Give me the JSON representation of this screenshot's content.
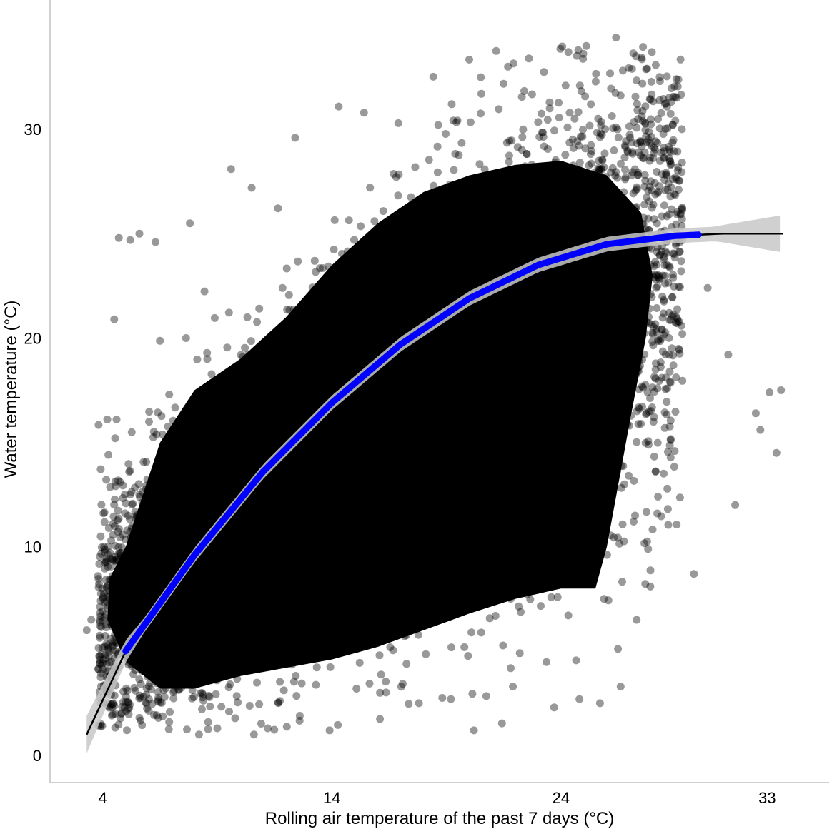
{
  "chart_data": {
    "type": "scatter",
    "title": "",
    "xlabel": "Rolling air temperature of the past 7 days (°C)",
    "ylabel": "Water temperature (°C)",
    "xlim": [
      1.7,
      35.7
    ],
    "ylim": [
      -1.3,
      36.2
    ],
    "x_ticks": [
      4,
      14,
      24,
      33
    ],
    "y_ticks": [
      0,
      10,
      20,
      30
    ],
    "grid": false,
    "legend": "none",
    "colors": {
      "points": "#000000",
      "fit_line_main": "#0000ff",
      "fit_line_ends": "#000000",
      "confidence_band": "#c8c8c8",
      "axis_line": "#d0d0d0"
    },
    "fit_curve": {
      "x": [
        3.3,
        5,
        8,
        11,
        14,
        17,
        20,
        23,
        26,
        29,
        31,
        33.7
      ],
      "y": [
        1,
        5.0,
        9.6,
        13.6,
        16.9,
        19.7,
        21.9,
        23.5,
        24.5,
        24.9,
        25.0,
        25.0
      ],
      "highlight_range": [
        5,
        30
      ]
    },
    "points_sample": {
      "x": [
        3.3,
        3.5,
        3.8,
        4.2,
        4.5,
        4.6,
        4.7,
        5.2,
        5.6,
        6.3,
        7.8,
        9.6,
        10.5,
        12.4,
        14.3,
        15.4,
        16.9,
        20.5,
        22.6,
        23.5,
        24.2,
        25.1,
        26.4,
        27.1,
        28.3,
        30.4,
        31.3,
        32.7,
        33.1,
        33.6,
        33.4,
        32.5,
        31.6,
        29.8,
        28.2,
        27.8,
        27.9,
        27.3,
        26.6,
        25.7,
        24.8,
        23.7,
        22.2,
        21.9,
        20.2,
        17.8,
        16.1,
        13.9,
        12.6,
        11.2,
        10.6,
        9.0,
        8.6,
        8.2,
        6.9,
        5.9,
        5.6,
        4.8
      ],
      "y": [
        6.0,
        6.5,
        8.6,
        16.1,
        20.9,
        16.1,
        24.8,
        24.7,
        25.0,
        24.6,
        25.5,
        28.1,
        27.2,
        29.6,
        31.1,
        30.8,
        30.3,
        32.5,
        33.4,
        31.3,
        32.1,
        34.0,
        34.4,
        32.9,
        31.4,
        22.4,
        19.2,
        15.6,
        17.4,
        17.5,
        14.5,
        16.4,
        12.0,
        8.7,
        11.6,
        9.9,
        8.1,
        6.5,
        3.3,
        2.5,
        2.7,
        2.3,
        4.9,
        3.3,
        1.2,
        2.5,
        3.0,
        1.2,
        1.9,
        1.3,
        1.0,
        1.3,
        1.6,
        1.0,
        1.6,
        2.9,
        1.8,
        2.0
      ]
    }
  }
}
